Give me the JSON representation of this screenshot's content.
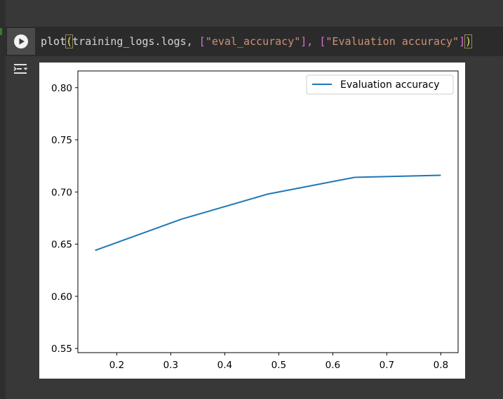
{
  "cell": {
    "code_tokens": [
      {
        "text": "plot",
        "cls": "tok-fn"
      },
      {
        "text": "(",
        "cls": "tok-paren"
      },
      {
        "text": "training_logs.logs, ",
        "cls": "tok-punct"
      },
      {
        "text": "[",
        "cls": "tok-bracket"
      },
      {
        "text": "\"eval_accuracy\"",
        "cls": "tok-str"
      },
      {
        "text": "], ",
        "cls": "tok-bracket"
      },
      {
        "text": "[",
        "cls": "tok-bracket"
      },
      {
        "text": "\"Evaluation accuracy\"",
        "cls": "tok-str"
      },
      {
        "text": "]",
        "cls": "tok-bracket"
      },
      {
        "text": ")",
        "cls": "tok-paren"
      }
    ],
    "run_icon": "play-circle-icon",
    "output_icon": "output-toggle-icon"
  },
  "chart_data": {
    "type": "line",
    "title": "",
    "xlabel": "",
    "ylabel": "",
    "x_ticks": [
      0.2,
      0.3,
      0.4,
      0.5,
      0.6,
      0.7,
      0.8
    ],
    "x_tick_labels": [
      "0.2",
      "0.3",
      "0.4",
      "0.5",
      "0.6",
      "0.7",
      "0.8"
    ],
    "y_ticks": [
      0.55,
      0.6,
      0.65,
      0.7,
      0.75,
      0.8
    ],
    "y_tick_labels": [
      "0.55",
      "0.60",
      "0.65",
      "0.70",
      "0.75",
      "0.80"
    ],
    "xlim": [
      0.128,
      0.832
    ],
    "ylim": [
      0.546,
      0.816
    ],
    "grid": false,
    "legend_position": "upper-right",
    "series": [
      {
        "name": "Evaluation accuracy",
        "color": "#1f77b4",
        "x": [
          0.16,
          0.32,
          0.48,
          0.64,
          0.8
        ],
        "y": [
          0.644,
          0.674,
          0.698,
          0.714,
          0.716
        ]
      }
    ]
  }
}
